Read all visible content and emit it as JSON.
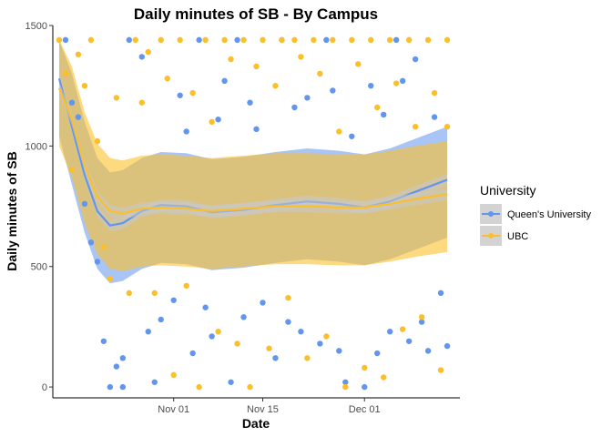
{
  "chart_data": {
    "type": "scatter",
    "title": "Daily minutes of SB - By Campus",
    "xlabel": "Date",
    "ylabel": "Daily minutes of SB",
    "x_axis_type": "date",
    "xlim": [
      "2021-10-13",
      "2021-12-16"
    ],
    "ylim": [
      -45,
      1500
    ],
    "x_ticks": [
      {
        "date": "2021-11-01",
        "label": "Nov 01"
      },
      {
        "date": "2021-11-15",
        "label": "Nov 15"
      },
      {
        "date": "2021-12-01",
        "label": "Dec 01"
      }
    ],
    "y_ticks": [
      0,
      500,
      1000,
      1500
    ],
    "y_tick_labels": [
      "0",
      "500",
      "1000",
      "1500"
    ],
    "grid": false,
    "legend": {
      "title": "University",
      "position": "right",
      "entries": [
        "Queen's University",
        "UBC"
      ]
    },
    "series": [
      {
        "name": "Queen's University",
        "color": "#6295ee",
        "points": [
          {
            "x": "2021-10-15",
            "y": 1440
          },
          {
            "x": "2021-10-16",
            "y": 1180
          },
          {
            "x": "2021-10-17",
            "y": 1120
          },
          {
            "x": "2021-10-18",
            "y": 760
          },
          {
            "x": "2021-10-19",
            "y": 600
          },
          {
            "x": "2021-10-20",
            "y": 520
          },
          {
            "x": "2021-10-21",
            "y": 190
          },
          {
            "x": "2021-10-22",
            "y": 0
          },
          {
            "x": "2021-10-23",
            "y": 85
          },
          {
            "x": "2021-10-24",
            "y": 120
          },
          {
            "x": "2021-10-24",
            "y": 0
          },
          {
            "x": "2021-10-25",
            "y": 1440
          },
          {
            "x": "2021-10-27",
            "y": 1370
          },
          {
            "x": "2021-10-28",
            "y": 230
          },
          {
            "x": "2021-10-29",
            "y": 20
          },
          {
            "x": "2021-10-30",
            "y": 280
          },
          {
            "x": "2021-11-01",
            "y": 360
          },
          {
            "x": "2021-11-02",
            "y": 1210
          },
          {
            "x": "2021-11-03",
            "y": 1060
          },
          {
            "x": "2021-11-04",
            "y": 140
          },
          {
            "x": "2021-11-05",
            "y": 1440
          },
          {
            "x": "2021-11-06",
            "y": 330
          },
          {
            "x": "2021-11-07",
            "y": 210
          },
          {
            "x": "2021-11-08",
            "y": 1110
          },
          {
            "x": "2021-11-09",
            "y": 1270
          },
          {
            "x": "2021-11-10",
            "y": 20
          },
          {
            "x": "2021-11-11",
            "y": 1440
          },
          {
            "x": "2021-11-12",
            "y": 290
          },
          {
            "x": "2021-11-13",
            "y": 1180
          },
          {
            "x": "2021-11-14",
            "y": 1070
          },
          {
            "x": "2021-11-15",
            "y": 350
          },
          {
            "x": "2021-11-17",
            "y": 120
          },
          {
            "x": "2021-11-18",
            "y": 1440
          },
          {
            "x": "2021-11-19",
            "y": 270
          },
          {
            "x": "2021-11-20",
            "y": 1160
          },
          {
            "x": "2021-11-21",
            "y": 230
          },
          {
            "x": "2021-11-22",
            "y": 1200
          },
          {
            "x": "2021-11-24",
            "y": 180
          },
          {
            "x": "2021-11-25",
            "y": 1440
          },
          {
            "x": "2021-11-26",
            "y": 1230
          },
          {
            "x": "2021-11-27",
            "y": 150
          },
          {
            "x": "2021-11-28",
            "y": 20
          },
          {
            "x": "2021-11-29",
            "y": 1040
          },
          {
            "x": "2021-12-01",
            "y": 0
          },
          {
            "x": "2021-12-02",
            "y": 1250
          },
          {
            "x": "2021-12-03",
            "y": 140
          },
          {
            "x": "2021-12-04",
            "y": 1130
          },
          {
            "x": "2021-12-05",
            "y": 230
          },
          {
            "x": "2021-12-06",
            "y": 1440
          },
          {
            "x": "2021-12-07",
            "y": 1270
          },
          {
            "x": "2021-12-08",
            "y": 190
          },
          {
            "x": "2021-12-09",
            "y": 1360
          },
          {
            "x": "2021-12-10",
            "y": 270
          },
          {
            "x": "2021-12-11",
            "y": 150
          },
          {
            "x": "2021-12-12",
            "y": 1120
          },
          {
            "x": "2021-12-13",
            "y": 390
          },
          {
            "x": "2021-12-14",
            "y": 170
          }
        ],
        "trend": [
          {
            "x": "2021-10-14",
            "y": 1280
          },
          {
            "x": "2021-10-16",
            "y": 1080
          },
          {
            "x": "2021-10-18",
            "y": 880
          },
          {
            "x": "2021-10-20",
            "y": 730
          },
          {
            "x": "2021-10-22",
            "y": 670
          },
          {
            "x": "2021-10-24",
            "y": 680
          },
          {
            "x": "2021-10-27",
            "y": 730
          },
          {
            "x": "2021-10-30",
            "y": 755
          },
          {
            "x": "2021-11-03",
            "y": 750
          },
          {
            "x": "2021-11-07",
            "y": 725
          },
          {
            "x": "2021-11-12",
            "y": 735
          },
          {
            "x": "2021-11-17",
            "y": 755
          },
          {
            "x": "2021-11-22",
            "y": 770
          },
          {
            "x": "2021-11-27",
            "y": 760
          },
          {
            "x": "2021-12-01",
            "y": 745
          },
          {
            "x": "2021-12-05",
            "y": 770
          },
          {
            "x": "2021-12-09",
            "y": 810
          },
          {
            "x": "2021-12-14",
            "y": 860
          }
        ]
      },
      {
        "name": "UBC",
        "color": "#fbbf2c",
        "points": [
          {
            "x": "2021-10-14",
            "y": 1440
          },
          {
            "x": "2021-10-15",
            "y": 1300
          },
          {
            "x": "2021-10-16",
            "y": 900
          },
          {
            "x": "2021-10-17",
            "y": 1380
          },
          {
            "x": "2021-10-18",
            "y": 1250
          },
          {
            "x": "2021-10-19",
            "y": 1440
          },
          {
            "x": "2021-10-20",
            "y": 1020
          },
          {
            "x": "2021-10-21",
            "y": 580
          },
          {
            "x": "2021-10-22",
            "y": 450
          },
          {
            "x": "2021-10-23",
            "y": 1200
          },
          {
            "x": "2021-10-25",
            "y": 390
          },
          {
            "x": "2021-10-26",
            "y": 1440
          },
          {
            "x": "2021-10-27",
            "y": 1180
          },
          {
            "x": "2021-10-28",
            "y": 1390
          },
          {
            "x": "2021-10-29",
            "y": 390
          },
          {
            "x": "2021-10-30",
            "y": 1440
          },
          {
            "x": "2021-10-31",
            "y": 1280
          },
          {
            "x": "2021-11-01",
            "y": 50
          },
          {
            "x": "2021-11-02",
            "y": 1440
          },
          {
            "x": "2021-11-03",
            "y": 420
          },
          {
            "x": "2021-11-04",
            "y": 1220
          },
          {
            "x": "2021-11-05",
            "y": 0
          },
          {
            "x": "2021-11-06",
            "y": 1440
          },
          {
            "x": "2021-11-07",
            "y": 1100
          },
          {
            "x": "2021-11-08",
            "y": 230
          },
          {
            "x": "2021-11-09",
            "y": 1440
          },
          {
            "x": "2021-11-10",
            "y": 1360
          },
          {
            "x": "2021-11-11",
            "y": 180
          },
          {
            "x": "2021-11-12",
            "y": 1440
          },
          {
            "x": "2021-11-13",
            "y": 0
          },
          {
            "x": "2021-11-14",
            "y": 1330
          },
          {
            "x": "2021-11-15",
            "y": 1440
          },
          {
            "x": "2021-11-16",
            "y": 160
          },
          {
            "x": "2021-11-17",
            "y": 1250
          },
          {
            "x": "2021-11-18",
            "y": 1440
          },
          {
            "x": "2021-11-19",
            "y": 370
          },
          {
            "x": "2021-11-20",
            "y": 1440
          },
          {
            "x": "2021-11-21",
            "y": 1370
          },
          {
            "x": "2021-11-22",
            "y": 120
          },
          {
            "x": "2021-11-23",
            "y": 1440
          },
          {
            "x": "2021-11-24",
            "y": 1300
          },
          {
            "x": "2021-11-25",
            "y": 210
          },
          {
            "x": "2021-11-26",
            "y": 1440
          },
          {
            "x": "2021-11-27",
            "y": 1060
          },
          {
            "x": "2021-11-28",
            "y": 0
          },
          {
            "x": "2021-11-29",
            "y": 1440
          },
          {
            "x": "2021-11-30",
            "y": 1340
          },
          {
            "x": "2021-12-01",
            "y": 80
          },
          {
            "x": "2021-12-02",
            "y": 1440
          },
          {
            "x": "2021-12-03",
            "y": 1160
          },
          {
            "x": "2021-12-04",
            "y": 40
          },
          {
            "x": "2021-12-05",
            "y": 1440
          },
          {
            "x": "2021-12-06",
            "y": 1260
          },
          {
            "x": "2021-12-07",
            "y": 240
          },
          {
            "x": "2021-12-08",
            "y": 1440
          },
          {
            "x": "2021-12-09",
            "y": 1080
          },
          {
            "x": "2021-12-10",
            "y": 290
          },
          {
            "x": "2021-12-11",
            "y": 1440
          },
          {
            "x": "2021-12-12",
            "y": 1220
          },
          {
            "x": "2021-12-13",
            "y": 70
          },
          {
            "x": "2021-12-14",
            "y": 1440
          },
          {
            "x": "2021-12-14",
            "y": 1080
          }
        ],
        "trend": [
          {
            "x": "2021-10-14",
            "y": 1240
          },
          {
            "x": "2021-10-16",
            "y": 1110
          },
          {
            "x": "2021-10-18",
            "y": 920
          },
          {
            "x": "2021-10-20",
            "y": 790
          },
          {
            "x": "2021-10-22",
            "y": 730
          },
          {
            "x": "2021-10-24",
            "y": 720
          },
          {
            "x": "2021-10-27",
            "y": 740
          },
          {
            "x": "2021-10-30",
            "y": 745
          },
          {
            "x": "2021-11-03",
            "y": 740
          },
          {
            "x": "2021-11-07",
            "y": 730
          },
          {
            "x": "2021-11-12",
            "y": 740
          },
          {
            "x": "2021-11-17",
            "y": 750
          },
          {
            "x": "2021-11-22",
            "y": 750
          },
          {
            "x": "2021-11-27",
            "y": 745
          },
          {
            "x": "2021-12-01",
            "y": 745
          },
          {
            "x": "2021-12-05",
            "y": 760
          },
          {
            "x": "2021-12-09",
            "y": 780
          },
          {
            "x": "2021-12-14",
            "y": 800
          }
        ]
      }
    ]
  }
}
